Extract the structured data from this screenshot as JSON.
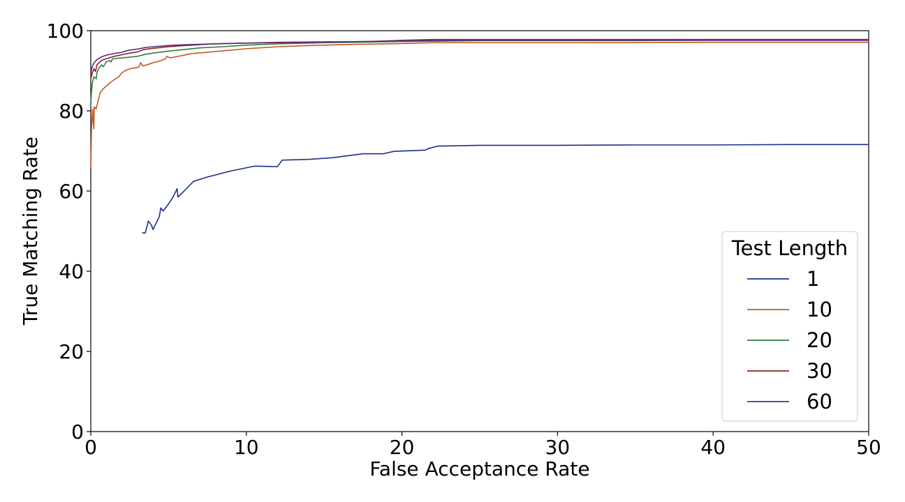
{
  "chart_data": {
    "type": "line",
    "title": "",
    "xlabel": "False Acceptance Rate",
    "ylabel": "True Matching Rate",
    "xlim": [
      0,
      50
    ],
    "ylim": [
      0,
      100
    ],
    "xticks": [
      "0",
      "10",
      "20",
      "30",
      "40",
      "50"
    ],
    "yticks": [
      "0",
      "20",
      "40",
      "60",
      "80",
      "100"
    ],
    "grid": false,
    "legend": {
      "title": "Test Length",
      "placement": "lower-right"
    },
    "series": [
      {
        "name": "1",
        "color": "#1f2f86",
        "points": [
          [
            3.3,
            49.6
          ],
          [
            3.5,
            49.5
          ],
          [
            3.7,
            52.5
          ],
          [
            3.9,
            51.5
          ],
          [
            4.0,
            50.4
          ],
          [
            4.2,
            52.0
          ],
          [
            4.4,
            53.6
          ],
          [
            4.5,
            55.8
          ],
          [
            4.65,
            55.0
          ],
          [
            5.0,
            56.8
          ],
          [
            5.3,
            58.6
          ],
          [
            5.55,
            60.6
          ],
          [
            5.6,
            58.5
          ],
          [
            6.0,
            60.0
          ],
          [
            6.6,
            62.4
          ],
          [
            7.5,
            63.5
          ],
          [
            9.0,
            65.0
          ],
          [
            10.5,
            66.2
          ],
          [
            12.0,
            66.1
          ],
          [
            12.3,
            67.7
          ],
          [
            14.0,
            67.9
          ],
          [
            15.5,
            68.3
          ],
          [
            17.5,
            69.3
          ],
          [
            18.8,
            69.3
          ],
          [
            19.5,
            69.9
          ],
          [
            21.5,
            70.2
          ],
          [
            21.7,
            70.6
          ],
          [
            22.3,
            71.2
          ],
          [
            25,
            71.4
          ],
          [
            30,
            71.4
          ],
          [
            35,
            71.5
          ],
          [
            40,
            71.5
          ],
          [
            45,
            71.6
          ],
          [
            50,
            71.6
          ]
        ]
      },
      {
        "name": "10",
        "color": "#c0581e",
        "points": [
          [
            0,
            66.0
          ],
          [
            0.05,
            76.0
          ],
          [
            0.12,
            80.5
          ],
          [
            0.15,
            77.5
          ],
          [
            0.2,
            75.5
          ],
          [
            0.22,
            81.0
          ],
          [
            0.35,
            80.5
          ],
          [
            0.5,
            83.0
          ],
          [
            0.6,
            84.5
          ],
          [
            0.8,
            85.5
          ],
          [
            1.0,
            86.2
          ],
          [
            1.3,
            87.2
          ],
          [
            1.6,
            88.0
          ],
          [
            1.8,
            88.5
          ],
          [
            2.0,
            89.5
          ],
          [
            2.3,
            90.2
          ],
          [
            2.6,
            90.6
          ],
          [
            3.0,
            90.8
          ],
          [
            3.1,
            91.0
          ],
          [
            3.2,
            92.0
          ],
          [
            3.35,
            91.2
          ],
          [
            3.7,
            91.6
          ],
          [
            4.0,
            92.0
          ],
          [
            4.5,
            92.5
          ],
          [
            4.8,
            93.0
          ],
          [
            4.9,
            93.6
          ],
          [
            5.1,
            93.2
          ],
          [
            6.0,
            93.9
          ],
          [
            6.5,
            94.3
          ],
          [
            8.0,
            94.8
          ],
          [
            10.0,
            95.5
          ],
          [
            12.0,
            96.0
          ],
          [
            14.0,
            96.3
          ],
          [
            17.0,
            96.6
          ],
          [
            20.0,
            96.8
          ],
          [
            22.0,
            97.0
          ],
          [
            30,
            97.0
          ],
          [
            40,
            97.1
          ],
          [
            50,
            97.1
          ]
        ]
      },
      {
        "name": "20",
        "color": "#2f7d3c",
        "points": [
          [
            0,
            82.0
          ],
          [
            0.05,
            85.0
          ],
          [
            0.1,
            87.0
          ],
          [
            0.2,
            88.5
          ],
          [
            0.35,
            88.0
          ],
          [
            0.4,
            89.6
          ],
          [
            0.55,
            90.8
          ],
          [
            0.7,
            91.5
          ],
          [
            0.8,
            91.0
          ],
          [
            1.0,
            92.2
          ],
          [
            1.2,
            92.6
          ],
          [
            1.3,
            92.2
          ],
          [
            1.4,
            93.0
          ],
          [
            2.0,
            93.2
          ],
          [
            3.0,
            93.6
          ],
          [
            3.5,
            94.1
          ],
          [
            4.0,
            94.4
          ],
          [
            5.0,
            94.9
          ],
          [
            6.0,
            95.3
          ],
          [
            7.0,
            95.7
          ],
          [
            8.5,
            96.0
          ],
          [
            10.0,
            96.4
          ],
          [
            12.0,
            96.7
          ],
          [
            15.0,
            97.0
          ],
          [
            20.0,
            97.3
          ],
          [
            25,
            97.5
          ],
          [
            30,
            97.5
          ],
          [
            40,
            97.6
          ],
          [
            50,
            97.6
          ]
        ]
      },
      {
        "name": "30",
        "color": "#8e1f28",
        "points": [
          [
            0,
            88.0
          ],
          [
            0.1,
            89.5
          ],
          [
            0.2,
            90.5
          ],
          [
            0.3,
            89.8
          ],
          [
            0.4,
            91.5
          ],
          [
            0.7,
            92.6
          ],
          [
            1.0,
            93.0
          ],
          [
            1.5,
            93.6
          ],
          [
            2.0,
            94.0
          ],
          [
            2.5,
            94.4
          ],
          [
            3.0,
            94.7
          ],
          [
            3.4,
            95.3
          ],
          [
            4.0,
            95.6
          ],
          [
            5.0,
            96.0
          ],
          [
            6.0,
            96.3
          ],
          [
            7.0,
            96.5
          ],
          [
            8.0,
            96.7
          ],
          [
            10.0,
            96.9
          ],
          [
            12.0,
            97.1
          ],
          [
            15.0,
            97.2
          ],
          [
            18.0,
            97.3
          ],
          [
            20.0,
            97.6
          ],
          [
            22.0,
            97.8
          ],
          [
            25,
            97.8
          ],
          [
            30,
            97.8
          ],
          [
            40,
            97.8
          ],
          [
            50,
            97.8
          ]
        ]
      },
      {
        "name": "60",
        "color": "#5b2a85",
        "points": [
          [
            0,
            89.0
          ],
          [
            0.05,
            90.5
          ],
          [
            0.2,
            92.0
          ],
          [
            0.4,
            92.8
          ],
          [
            0.7,
            93.5
          ],
          [
            1.0,
            93.9
          ],
          [
            1.5,
            94.3
          ],
          [
            2.0,
            94.6
          ],
          [
            2.4,
            95.1
          ],
          [
            3.0,
            95.4
          ],
          [
            3.5,
            95.8
          ],
          [
            4.0,
            96.0
          ],
          [
            5.0,
            96.3
          ],
          [
            6.0,
            96.5
          ],
          [
            7.0,
            96.6
          ],
          [
            8.5,
            96.8
          ],
          [
            10.0,
            96.9
          ],
          [
            12.0,
            97.0
          ],
          [
            15.0,
            97.1
          ],
          [
            20.0,
            97.5
          ],
          [
            22.0,
            97.6
          ],
          [
            25,
            97.6
          ],
          [
            30,
            97.6
          ],
          [
            40,
            97.6
          ],
          [
            50,
            97.6
          ]
        ]
      }
    ]
  }
}
